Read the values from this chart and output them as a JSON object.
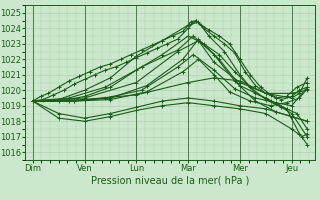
{
  "bg_color": "#cce8cc",
  "grid_color": "#aaccaa",
  "line_color": "#1a5c1a",
  "xlabel": "Pression niveau de la mer( hPa )",
  "yticks": [
    1016,
    1017,
    1018,
    1019,
    1020,
    1021,
    1022,
    1023,
    1024,
    1025
  ],
  "ylim": [
    1015.5,
    1025.5
  ],
  "xtick_labels": [
    "Dim",
    "Ven",
    "Lun",
    "Mar",
    "Mer",
    "Jeu"
  ],
  "xtick_positions": [
    0,
    1,
    2,
    3,
    4,
    5
  ],
  "xlim": [
    -0.15,
    5.45
  ],
  "lines": [
    [
      0.0,
      1019.3,
      0.15,
      1019.6,
      0.3,
      1019.8,
      0.5,
      1020.2,
      0.7,
      1020.6,
      0.9,
      1020.9,
      1.1,
      1021.2,
      1.3,
      1021.5,
      1.5,
      1021.7,
      1.7,
      1022.0,
      1.9,
      1022.3,
      2.1,
      1022.6,
      2.3,
      1022.9,
      2.5,
      1023.2,
      2.7,
      1023.5,
      2.9,
      1023.8,
      3.05,
      1024.4,
      3.15,
      1024.5,
      3.25,
      1024.2,
      3.4,
      1023.9,
      3.6,
      1023.5,
      3.8,
      1023.0,
      4.0,
      1022.0,
      4.2,
      1021.0,
      4.4,
      1020.2,
      4.6,
      1019.7,
      4.8,
      1019.4,
      5.0,
      1019.6,
      5.15,
      1020.0,
      5.3,
      1020.2
    ],
    [
      0.0,
      1019.3,
      0.2,
      1019.4,
      0.4,
      1019.7,
      0.6,
      1020.0,
      0.8,
      1020.4,
      1.0,
      1020.7,
      1.2,
      1021.0,
      1.4,
      1021.3,
      1.6,
      1021.5,
      1.8,
      1021.8,
      2.0,
      1022.1,
      2.2,
      1022.4,
      2.4,
      1022.7,
      2.6,
      1023.0,
      2.8,
      1023.3,
      3.0,
      1024.0,
      3.15,
      1024.5,
      3.3,
      1024.0,
      3.5,
      1023.5,
      3.7,
      1023.0,
      3.9,
      1022.4,
      4.1,
      1021.2,
      4.3,
      1020.3,
      4.5,
      1019.8,
      4.7,
      1019.5,
      4.9,
      1019.6,
      5.1,
      1020.2,
      5.3,
      1020.5
    ],
    [
      0.0,
      1019.3,
      0.5,
      1019.4,
      1.0,
      1020.0,
      1.5,
      1020.8,
      2.0,
      1022.2,
      2.5,
      1023.2,
      3.0,
      1024.2,
      3.2,
      1024.4,
      3.4,
      1023.5,
      3.7,
      1022.5,
      4.0,
      1021.0,
      4.3,
      1019.8,
      4.6,
      1019.3,
      4.9,
      1018.8,
      5.1,
      1018.5,
      5.3,
      1017.5
    ],
    [
      0.0,
      1019.3,
      0.5,
      1019.3,
      1.0,
      1019.6,
      1.5,
      1020.2,
      2.0,
      1021.3,
      2.5,
      1022.3,
      3.0,
      1023.5,
      3.3,
      1023.0,
      3.6,
      1022.3,
      3.9,
      1021.2,
      4.2,
      1020.2,
      4.5,
      1019.4,
      4.8,
      1018.9,
      5.0,
      1018.5,
      5.3,
      1017.0
    ],
    [
      0.0,
      1019.3,
      0.8,
      1019.3,
      1.5,
      1019.5,
      2.2,
      1020.3,
      2.9,
      1022.0,
      3.2,
      1023.3,
      3.6,
      1022.0,
      4.0,
      1020.3,
      4.5,
      1019.5,
      4.9,
      1018.8,
      5.15,
      1017.2,
      5.3,
      1016.5
    ],
    [
      0.0,
      1019.3,
      0.7,
      1019.3,
      1.4,
      1019.5,
      2.1,
      1020.0,
      2.8,
      1021.5,
      3.1,
      1022.3,
      3.5,
      1021.3,
      3.9,
      1020.1,
      4.3,
      1019.5,
      4.7,
      1019.2,
      5.0,
      1019.0,
      5.3,
      1020.2
    ],
    [
      0.0,
      1019.3,
      0.8,
      1019.3,
      1.5,
      1019.4,
      2.2,
      1019.9,
      2.9,
      1021.2,
      3.2,
      1022.0,
      3.5,
      1021.0,
      3.8,
      1019.9,
      4.2,
      1019.3,
      4.6,
      1019.0,
      4.9,
      1019.2,
      5.15,
      1019.5,
      5.3,
      1020.1
    ],
    [
      0.0,
      1019.3,
      0.5,
      1018.5,
      1.0,
      1018.2,
      1.5,
      1018.5,
      2.0,
      1018.9,
      2.5,
      1019.3,
      3.0,
      1019.5,
      3.5,
      1019.3,
      4.0,
      1019.0,
      4.5,
      1018.8,
      5.0,
      1018.3,
      5.3,
      1018.0
    ],
    [
      0.0,
      1019.3,
      0.5,
      1018.2,
      1.0,
      1018.0,
      1.5,
      1018.3,
      2.0,
      1018.7,
      2.5,
      1019.0,
      3.0,
      1019.2,
      3.5,
      1019.0,
      4.0,
      1018.8,
      4.5,
      1018.5,
      5.0,
      1017.5,
      5.2,
      1017.0,
      5.3,
      1017.2
    ],
    [
      0.0,
      1019.3,
      1.0,
      1019.4,
      2.0,
      1019.7,
      3.0,
      1020.5,
      3.5,
      1020.8,
      4.0,
      1020.6,
      4.5,
      1019.8,
      5.0,
      1019.5,
      5.15,
      1019.8,
      5.3,
      1020.8
    ],
    [
      0.0,
      1019.3,
      1.0,
      1019.5,
      2.0,
      1020.5,
      2.8,
      1022.5,
      3.2,
      1023.2,
      3.5,
      1021.8,
      4.0,
      1020.5,
      4.5,
      1019.8,
      5.0,
      1019.8,
      5.3,
      1020.0
    ],
    [
      0.0,
      1019.3,
      0.7,
      1019.5,
      1.4,
      1020.2,
      2.1,
      1021.5,
      2.8,
      1022.6,
      3.1,
      1023.5,
      3.5,
      1022.3,
      3.9,
      1020.6,
      4.3,
      1019.3,
      4.7,
      1018.6,
      5.0,
      1018.3,
      5.3,
      1018.0
    ]
  ]
}
